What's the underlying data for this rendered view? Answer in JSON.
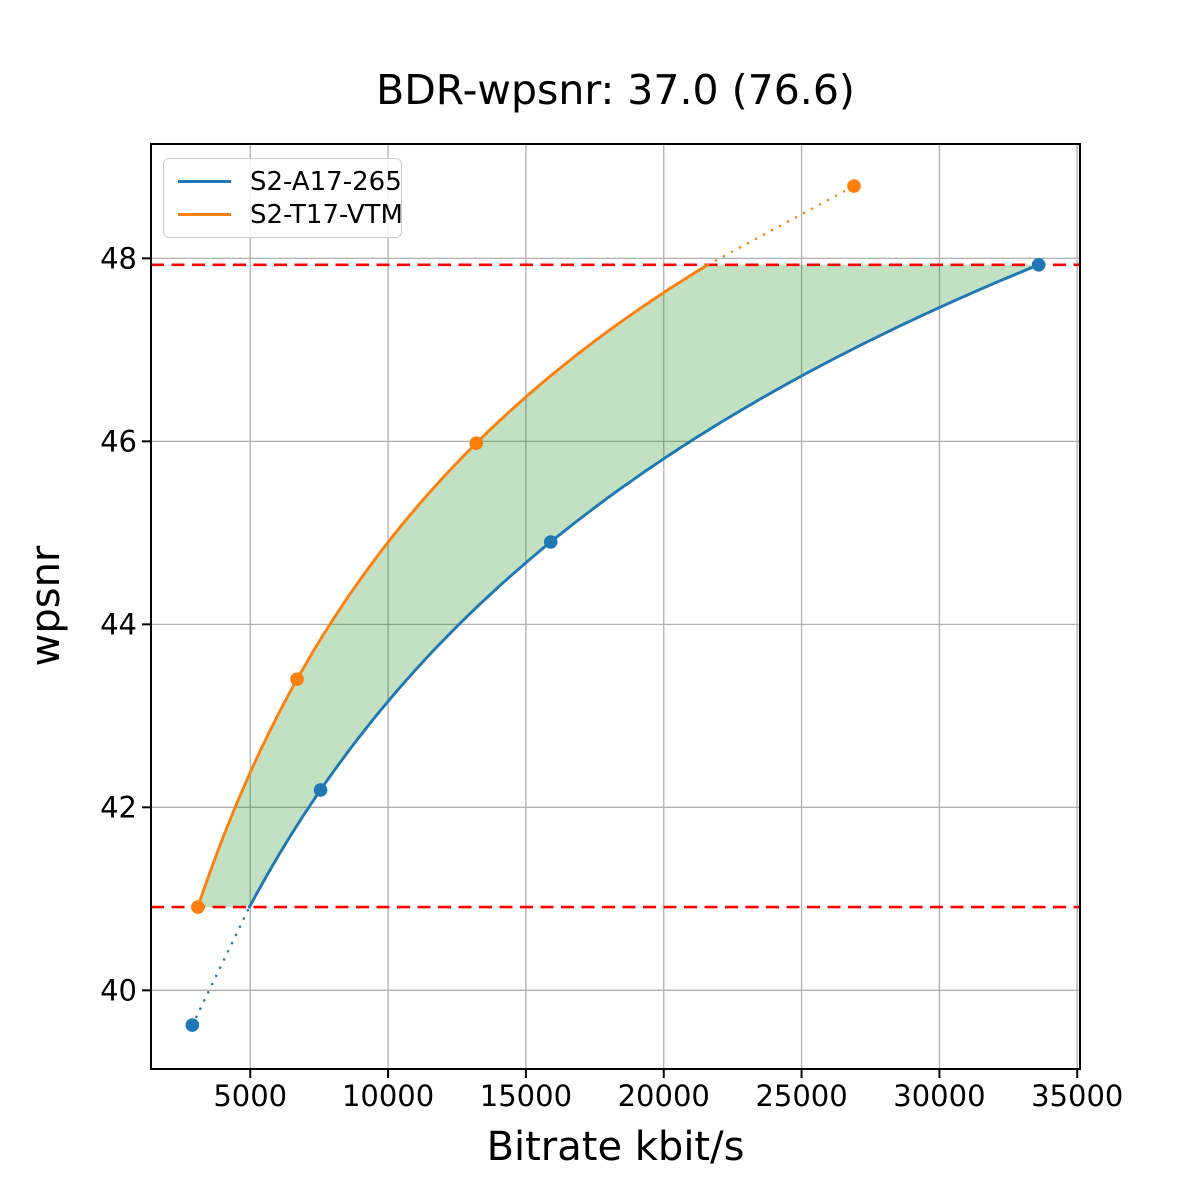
{
  "chart_data": {
    "type": "line",
    "title": "BDR-wpsnr: 37.0 (76.6)",
    "xlabel": "Bitrate kbit/s",
    "ylabel": "wpsnr",
    "xlim": [
      1400,
      35100
    ],
    "ylim": [
      39.14,
      49.25
    ],
    "x_ticks": [
      5000,
      10000,
      15000,
      20000,
      25000,
      30000,
      35000
    ],
    "y_ticks": [
      40,
      42,
      44,
      46,
      48
    ],
    "grid": true,
    "grid_color": "#b0b0b0",
    "frame_color": "#000000",
    "text_color": "#000000",
    "background_color": "#ffffff",
    "legend_position": "upper left",
    "legend_border_color": "#cccccc",
    "series": [
      {
        "name": "S2-A17-265",
        "color": "#1f77b4",
        "points": [
          [
            2900,
            39.62
          ],
          [
            7550,
            42.19
          ],
          [
            15900,
            44.9
          ],
          [
            33600,
            47.93
          ]
        ]
      },
      {
        "name": "S2-T17-VTM",
        "color": "#ff7f0e",
        "points": [
          [
            3100,
            40.91
          ],
          [
            6700,
            43.4
          ],
          [
            13200,
            45.98
          ],
          [
            26900,
            48.79
          ]
        ]
      }
    ],
    "overlap_lines": {
      "color": "#ff0000",
      "upper": 47.93,
      "lower": 40.91,
      "style": "dashed"
    },
    "fill_between_color": "#008000",
    "fill_between_alpha": 0.24
  }
}
